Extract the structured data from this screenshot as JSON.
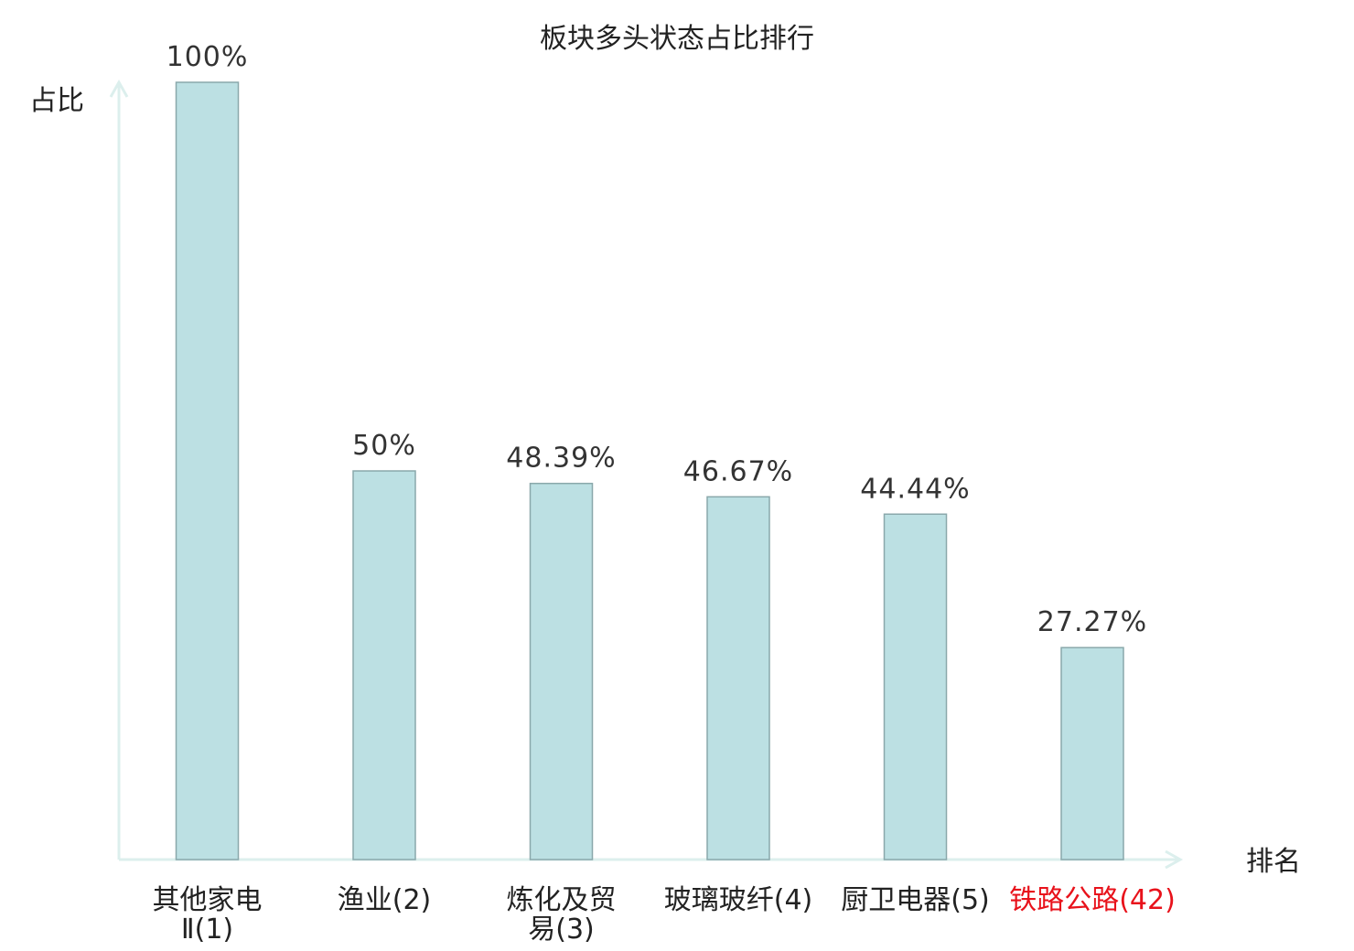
{
  "chart_data": {
    "type": "bar",
    "title": "板块多头状态占比排行",
    "ylabel": "占比",
    "xlabel": "排名",
    "ylim": [
      0,
      100
    ],
    "categories": [
      {
        "lines": [
          "其他家电",
          "Ⅱ(1)"
        ],
        "highlight": false
      },
      {
        "lines": [
          "渔业(2)"
        ],
        "highlight": false
      },
      {
        "lines": [
          "炼化及贸",
          "易(3)"
        ],
        "highlight": false
      },
      {
        "lines": [
          "玻璃玻纤(4)"
        ],
        "highlight": false
      },
      {
        "lines": [
          "厨卫电器(5)"
        ],
        "highlight": false
      },
      {
        "lines": [
          "铁路公路(42)"
        ],
        "highlight": true
      }
    ],
    "values": [
      100,
      50,
      48.39,
      46.67,
      44.44,
      27.27
    ],
    "value_labels": [
      "100%",
      "50%",
      "48.39%",
      "46.67%",
      "44.44%",
      "27.27%"
    ],
    "grid": false,
    "colors": {
      "bar_fill": "#bce0e3",
      "bar_stroke": "#8aa8ab",
      "axis": "#dcefed",
      "text": "#222222",
      "highlight": "#e8121b"
    }
  }
}
